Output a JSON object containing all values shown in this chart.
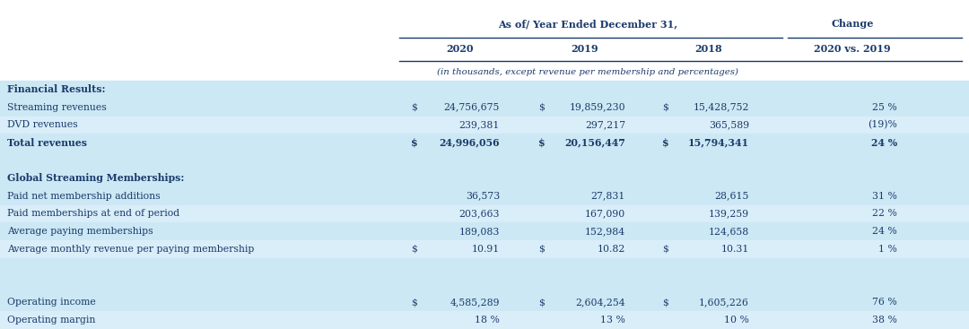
{
  "title_header": "As of/ Year Ended December 31,",
  "change_header": "Change",
  "year_headers": [
    "2020",
    "2019",
    "2018",
    "2020 vs. 2019"
  ],
  "unit_note": "(in thousands, except revenue per membership and percentages)",
  "sections": [
    {
      "header": "Financial Results:",
      "rows": [
        {
          "label": "Streaming revenues",
          "dollar_2020": true,
          "dollar_2019": true,
          "dollar_2018": true,
          "val_2020": "24,756,675",
          "val_2019": "19,859,230",
          "val_2018": "15,428,752",
          "change": "25 %",
          "bold": false,
          "bg": "light"
        },
        {
          "label": "DVD revenues",
          "dollar_2020": false,
          "dollar_2019": false,
          "dollar_2018": false,
          "val_2020": "239,381",
          "val_2019": "297,217",
          "val_2018": "365,589",
          "change": "(19)%",
          "bold": false,
          "bg": "light2"
        },
        {
          "label": "Total revenues",
          "dollar_2020": true,
          "dollar_2019": true,
          "dollar_2018": true,
          "val_2020": "24,996,056",
          "val_2019": "20,156,447",
          "val_2018": "15,794,341",
          "change": "24 %",
          "bold": true,
          "bg": "light"
        }
      ]
    },
    {
      "header": "Global Streaming Memberships:",
      "rows": [
        {
          "label": "Paid net membership additions",
          "dollar_2020": false,
          "dollar_2019": false,
          "dollar_2018": false,
          "val_2020": "36,573",
          "val_2019": "27,831",
          "val_2018": "28,615",
          "change": "31 %",
          "bold": false,
          "bg": "light"
        },
        {
          "label": "Paid memberships at end of period",
          "dollar_2020": false,
          "dollar_2019": false,
          "dollar_2018": false,
          "val_2020": "203,663",
          "val_2019": "167,090",
          "val_2018": "139,259",
          "change": "22 %",
          "bold": false,
          "bg": "light2"
        },
        {
          "label": "Average paying memberships",
          "dollar_2020": false,
          "dollar_2019": false,
          "dollar_2018": false,
          "val_2020": "189,083",
          "val_2019": "152,984",
          "val_2018": "124,658",
          "change": "24 %",
          "bold": false,
          "bg": "light"
        },
        {
          "label": "Average monthly revenue per paying membership",
          "dollar_2020": true,
          "dollar_2019": true,
          "dollar_2018": true,
          "val_2020": "10.91",
          "val_2019": "10.82",
          "val_2018": "10.31",
          "change": "1 %",
          "bold": false,
          "bg": "light2"
        }
      ]
    },
    {
      "header": null,
      "rows": [
        {
          "label": "Operating income",
          "dollar_2020": true,
          "dollar_2019": true,
          "dollar_2018": true,
          "val_2020": "4,585,289",
          "val_2019": "2,604,254",
          "val_2018": "1,605,226",
          "change": "76 %",
          "bold": false,
          "bg": "light"
        },
        {
          "label": "Operating margin",
          "dollar_2020": false,
          "dollar_2019": false,
          "dollar_2018": false,
          "val_2020": "18 %",
          "val_2019": "13 %",
          "val_2018": "10 %",
          "change": "38 %",
          "bold": false,
          "bg": "light2"
        }
      ]
    }
  ],
  "bg_light": "#cce8f4",
  "bg_light2": "#daeef9",
  "bg_white": "#ffffff",
  "text_color": "#1a3a6b",
  "line_color": "#1a3a6b",
  "font_size": 7.8
}
